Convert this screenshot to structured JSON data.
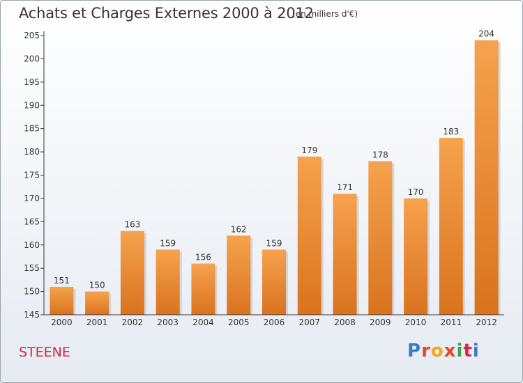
{
  "header": {
    "title": "Achats et Charges Externes 2000 à 2012",
    "unit": "(en milliers d'€)"
  },
  "footer": {
    "commune": "STEENE",
    "logo_text": "Proxiti",
    "logo_colors": [
      "#3a7cc9",
      "#e8452c",
      "#f2a51a",
      "#e8452c",
      "#3aa34a",
      "#d7263d",
      "#3a7cc9"
    ]
  },
  "chart_data": {
    "type": "bar",
    "title": "Achats et Charges Externes 2000 à 2012",
    "subtitle": "(en milliers d'€)",
    "xlabel": "",
    "ylabel": "",
    "categories": [
      "2000",
      "2001",
      "2002",
      "2003",
      "2004",
      "2005",
      "2006",
      "2007",
      "2008",
      "2009",
      "2010",
      "2011",
      "2012"
    ],
    "values": [
      151,
      150,
      163,
      159,
      156,
      162,
      159,
      179,
      171,
      178,
      170,
      183,
      204
    ],
    "ylim": [
      145,
      205
    ],
    "yticks": [
      145,
      150,
      155,
      160,
      165,
      170,
      175,
      180,
      185,
      190,
      195,
      200,
      205
    ],
    "grid": false,
    "bar_color_top": "#f6a24e",
    "bar_color_bottom": "#d9731e"
  }
}
